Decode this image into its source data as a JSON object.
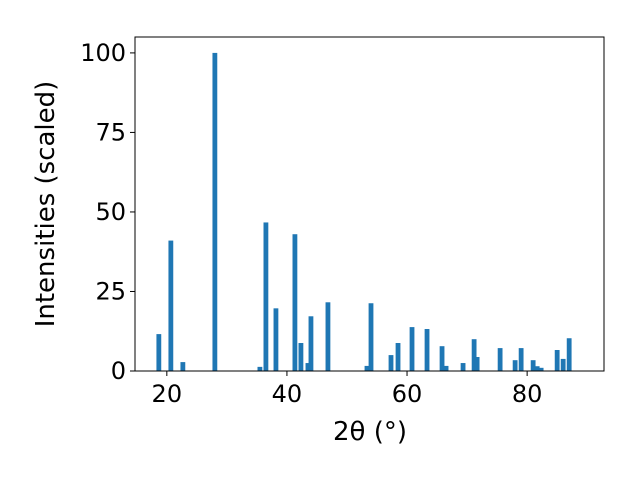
{
  "chart_data": {
    "type": "bar",
    "xlabel": "2θ (°)",
    "ylabel": "Intensities (scaled)",
    "x": [
      18.67,
      20.67,
      22.67,
      28.0,
      35.5,
      36.5,
      38.17,
      41.33,
      42.33,
      43.5,
      44.0,
      46.83,
      53.33,
      54.0,
      57.33,
      58.5,
      60.83,
      63.33,
      65.83,
      66.5,
      69.33,
      71.17,
      71.67,
      75.5,
      78.0,
      79.0,
      81.0,
      81.67,
      82.33,
      85.0,
      86.0,
      87.0
    ],
    "values": [
      11.6,
      41,
      2.8,
      100,
      1.3,
      46.7,
      19.7,
      43,
      8.8,
      2.5,
      17.2,
      21.6,
      1.6,
      21.3,
      5,
      8.8,
      13.8,
      13.2,
      7.8,
      1.6,
      2.5,
      10,
      4.4,
      7.2,
      3.4,
      7.2,
      3.4,
      1.5,
      1,
      6.6,
      3.8,
      10.3
    ],
    "color": "#1f77b4",
    "xlim": [
      14.7,
      92.8
    ],
    "xticks": [
      20,
      40,
      60,
      80
    ],
    "ylim": [
      0,
      105
    ],
    "yticks": [
      0,
      25,
      50,
      75,
      100
    ]
  }
}
